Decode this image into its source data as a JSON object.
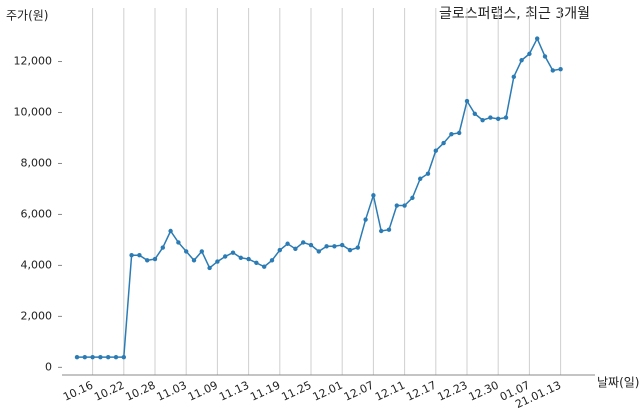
{
  "chart_data": {
    "type": "line",
    "title": "글로스퍼랩스, 최근 3개월",
    "y_label": "주가(원)",
    "x_label": "날짜(일)",
    "categories": [
      null,
      null,
      "10.16",
      null,
      null,
      null,
      "10.22",
      null,
      null,
      null,
      "10.28",
      null,
      null,
      null,
      "11.03",
      null,
      null,
      null,
      "11.09",
      null,
      null,
      null,
      "11.13",
      null,
      null,
      null,
      "11.19",
      null,
      null,
      null,
      "11.25",
      null,
      null,
      null,
      "12.01",
      null,
      null,
      null,
      "12.07",
      null,
      null,
      null,
      "12.11",
      null,
      null,
      null,
      "12.17",
      null,
      null,
      null,
      "12.23",
      null,
      null,
      null,
      "12.30",
      null,
      null,
      null,
      "01.07",
      null,
      null,
      null,
      "21.01.13"
    ],
    "series": [
      {
        "name": "주가",
        "color": "#2b7bb4",
        "values": [
          400,
          400,
          400,
          400,
          400,
          400,
          400,
          4400,
          4400,
          4200,
          4250,
          4700,
          5350,
          4900,
          4550,
          4200,
          4550,
          3900,
          4150,
          4350,
          4500,
          4300,
          4250,
          4100,
          3950,
          4200,
          4600,
          4850,
          4650,
          4900,
          4800,
          4550,
          4750,
          4750,
          4800,
          4600,
          4700,
          5800,
          6750,
          5350,
          5400,
          6350,
          6350,
          6650,
          7400,
          7600,
          8500,
          8800,
          9150,
          9200,
          10450,
          9950,
          9700,
          9800,
          9750,
          9800,
          11400,
          12050,
          12300,
          12900,
          12200,
          11650,
          11700
        ]
      }
    ],
    "ylim": [
      -300,
      14100
    ],
    "yticks": [
      0,
      {
        "value": 2000,
        "label": "2,000"
      },
      {
        "value": 4000,
        "label": "4,000"
      },
      {
        "value": 6000,
        "label": "6,000"
      },
      {
        "value": 8000,
        "label": "8,000"
      },
      {
        "value": 10000,
        "label": "10,000"
      },
      {
        "value": 12000,
        "label": "12,000"
      }
    ],
    "grid": "x"
  }
}
